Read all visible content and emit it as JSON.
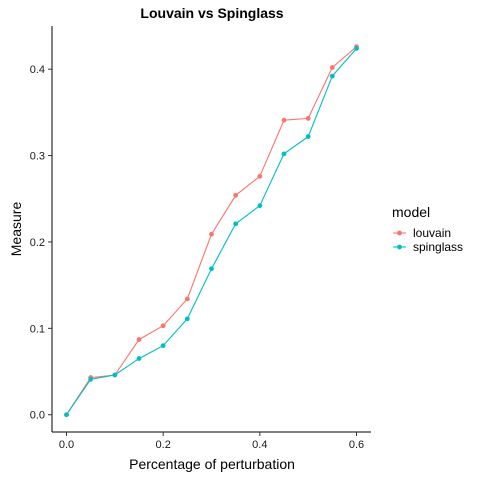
{
  "chart_data": {
    "type": "line",
    "title": "Louvain vs Spinglass",
    "xlabel": "Percentage of perturbation",
    "ylabel": "Measure",
    "xlim": [
      -0.03,
      0.63
    ],
    "ylim": [
      -0.02,
      0.45
    ],
    "xticks": [
      0.0,
      0.2,
      0.4,
      0.6
    ],
    "xtick_labels": [
      "0.0",
      "0.2",
      "0.4",
      "0.6"
    ],
    "yticks": [
      0.0,
      0.1,
      0.2,
      0.3,
      0.4
    ],
    "ytick_labels": [
      "0.0",
      "0.1",
      "0.2",
      "0.3",
      "0.4"
    ],
    "grid": false,
    "legend": {
      "title": "model",
      "position": "right"
    },
    "x": [
      0.0,
      0.05,
      0.1,
      0.15,
      0.2,
      0.25,
      0.3,
      0.35,
      0.4,
      0.45,
      0.5,
      0.55,
      0.6
    ],
    "series": [
      {
        "name": "louvain",
        "color": "#F8766D",
        "values": [
          0.0,
          0.043,
          0.046,
          0.087,
          0.103,
          0.134,
          0.209,
          0.254,
          0.276,
          0.341,
          0.343,
          0.402,
          0.426
        ]
      },
      {
        "name": "spinglass",
        "color": "#00BFC4",
        "values": [
          0.0,
          0.041,
          0.046,
          0.065,
          0.08,
          0.111,
          0.169,
          0.221,
          0.242,
          0.302,
          0.322,
          0.392,
          0.424
        ]
      }
    ]
  }
}
